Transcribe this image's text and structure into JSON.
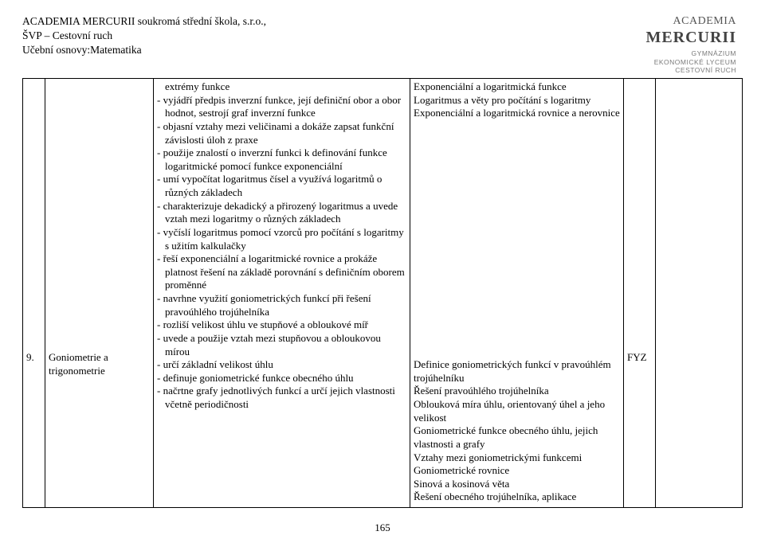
{
  "header": {
    "line1": "ACADEMIA MERCURII  soukromá střední škola, s.r.o.,",
    "line2": "ŠVP – Cestovní ruch",
    "line3": "Učební osnovy:Matematika"
  },
  "logo": {
    "top": "ACADEMIA",
    "big": "MERCURII",
    "sub1": "GYMNÁZIUM",
    "sub2": "EKONOMICKÉ LYCEUM",
    "sub3": "CESTOVNÍ RUCH"
  },
  "row": {
    "num": "9.",
    "topic": "Goniometrie a trigonometrie",
    "col3_lines": [
      {
        "t": "cont",
        "v": "extrémy funkce"
      },
      {
        "t": "line",
        "v": "- vyjádří předpis inverzní funkce, její definiční obor a obor hodnot, sestrojí graf inverzní funkce"
      },
      {
        "t": "line",
        "v": "- objasní vztahy mezi veličinami a dokáže zapsat funkční závislosti úloh z praxe"
      },
      {
        "t": "line",
        "v": "- použije znalostí o inverzní funkci k definování funkce logaritmické pomocí funkce exponenciální"
      },
      {
        "t": "line",
        "v": "- umí vypočítat logaritmus čísel a využívá logaritmů o různých základech"
      },
      {
        "t": "line",
        "v": "- charakterizuje dekadický a přirozený logaritmus a uvede vztah mezi logaritmy o různých základech"
      },
      {
        "t": "line",
        "v": "- vyčíslí logaritmus pomocí vzorců pro počítání s logaritmy s užitím kalkulačky"
      },
      {
        "t": "line",
        "v": "- řeší exponenciální a logaritmické rovnice a prokáže platnost řešení na základě porovnání s definičním oborem proměnné"
      },
      {
        "t": "line",
        "v": "- navrhne využití goniometrických funkcí při řešení pravoúhlého trojúhelníka"
      },
      {
        "t": "line",
        "v": "- rozliší velikost úhlu ve stupňové a obloukové míř"
      },
      {
        "t": "line",
        "v": "- uvede a použije vztah mezi stupňovou a obloukovou mírou"
      },
      {
        "t": "line",
        "v": "- určí základní velikost úhlu"
      },
      {
        "t": "line",
        "v": "- definuje goniometrické funkce obecného úhlu"
      },
      {
        "t": "line",
        "v": "- načrtne grafy jednotlivých funkcí a určí jejich vlastnosti včetně periodičnosti"
      }
    ],
    "col4_lines": [
      "Exponenciální a logaritmická funkce",
      "Logaritmus a věty pro počítání s logaritmy",
      "Exponenciální a logaritmická rovnice a nerovnice",
      "",
      "",
      "",
      "",
      "",
      "",
      "",
      "",
      "",
      "",
      "",
      "",
      "",
      "",
      "",
      "",
      "",
      "",
      "Definice goniometrických funkcí v pravoúhlém trojúhelníku",
      "Řešení pravoúhlého trojúhelníka",
      "Oblouková míra úhlu, orientovaný úhel a jeho velikost",
      "Goniometrické funkce obecného úhlu, jejich vlastnosti a grafy",
      "Vztahy mezi goniometrickými funkcemi",
      "Goniometrické rovnice",
      "Sinová a kosinová věta",
      "Řešení obecného trojúhelníka, aplikace"
    ],
    "col5": "FYZ"
  },
  "pagenum": "165"
}
